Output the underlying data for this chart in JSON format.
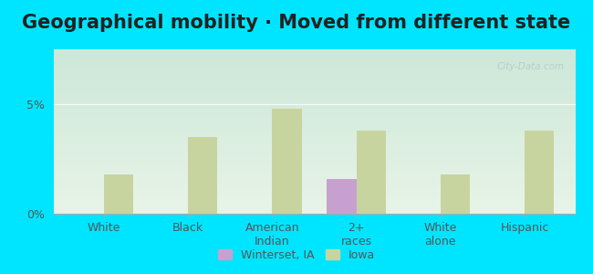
{
  "title": "Geographical mobility · Moved from different state",
  "categories": [
    "White",
    "Black",
    "American\nIndian",
    "2+\nraces",
    "White\nalone",
    "Hispanic"
  ],
  "winterset_values": [
    0,
    0,
    0,
    1.6,
    0,
    0
  ],
  "iowa_values": [
    1.8,
    3.5,
    4.8,
    3.8,
    1.8,
    3.8
  ],
  "winterset_color": "#c8a0d0",
  "iowa_color": "#c8d4a0",
  "ylim": [
    0,
    7.5
  ],
  "yticks": [
    0,
    5
  ],
  "ytick_labels": [
    "0%",
    "5%"
  ],
  "legend_winterset": "Winterset, IA",
  "legend_iowa": "Iowa",
  "bar_width": 0.35,
  "background_top": "#e8f5e8",
  "background_bottom": "#d0ede8",
  "outer_bg": "#00e5ff",
  "title_fontsize": 15,
  "tick_fontsize": 9,
  "legend_fontsize": 9
}
